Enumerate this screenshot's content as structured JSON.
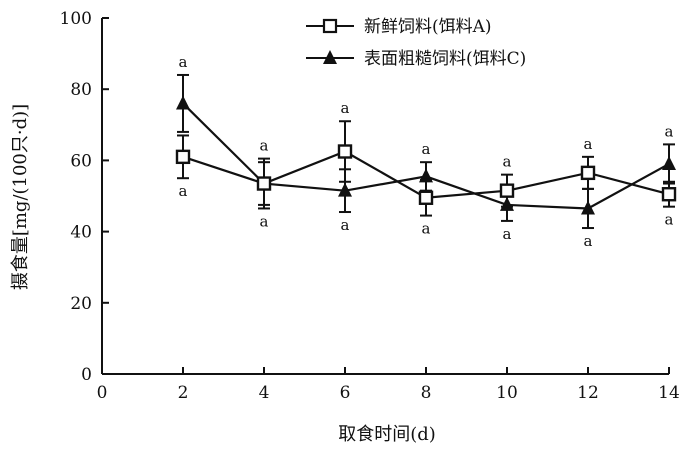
{
  "chart_data": {
    "type": "line",
    "title": "",
    "xlabel": "取食时间(d)",
    "ylabel": "摄食量[mg/(100只·d)]",
    "xlim": [
      0,
      14
    ],
    "ylim": [
      0,
      100
    ],
    "xticks": [
      "0",
      "2",
      "4",
      "6",
      "8",
      "10",
      "12",
      "14"
    ],
    "yticks": [
      "0",
      "20",
      "40",
      "60",
      "80",
      "100"
    ],
    "grid": false,
    "legend_position": "top-right",
    "x": [
      2,
      4,
      6,
      8,
      10,
      12,
      14
    ],
    "series": [
      {
        "name": "新鲜饲料(饵料A)",
        "marker": "open-square",
        "color": "#111111",
        "values": [
          61,
          53.5,
          62.5,
          49.5,
          51.5,
          56.5,
          50.5
        ],
        "error": [
          6,
          7,
          8.5,
          5,
          4.5,
          4.5,
          3.5
        ],
        "significance": [
          "a",
          "a",
          "a",
          "a",
          "a",
          "a",
          "a"
        ]
      },
      {
        "name": "表面粗糙饲料(饵料C)",
        "marker": "filled-triangle",
        "color": "#111111",
        "values": [
          76,
          53.5,
          51.5,
          55.5,
          47.5,
          46.5,
          59
        ],
        "error": [
          8,
          6,
          6,
          4,
          4.5,
          5.5,
          5.5
        ],
        "significance": [
          "a",
          "a",
          "a",
          "a",
          "a",
          "a",
          "a"
        ]
      }
    ]
  }
}
